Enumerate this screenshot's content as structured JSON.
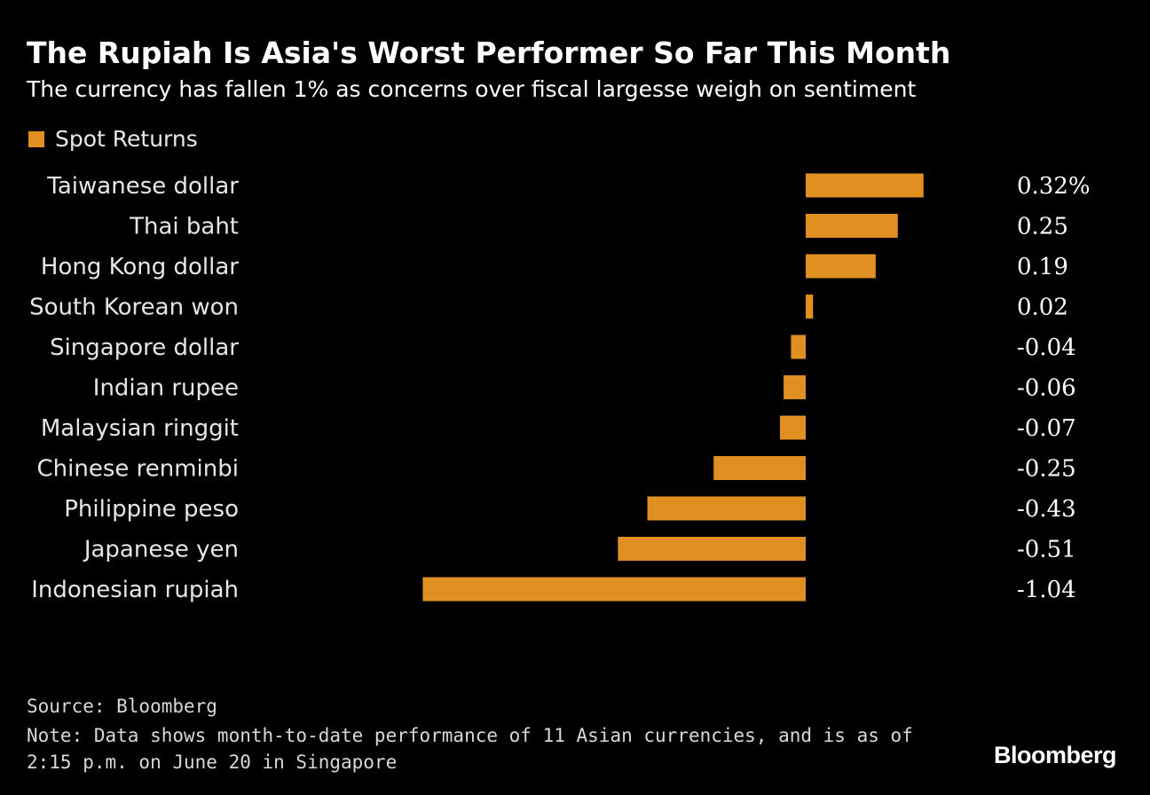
{
  "header": {
    "title": "The Rupiah Is Asia's Worst Performer So Far This Month",
    "subtitle": "The currency has fallen 1% as concerns over fiscal largesse weigh on sentiment"
  },
  "colors": {
    "bar": "#e08f22",
    "background": "#000000"
  },
  "chart_data": {
    "type": "bar",
    "orientation": "horizontal",
    "categories": [
      "Taiwanese dollar",
      "Thai baht",
      "Hong Kong dollar",
      "South Korean won",
      "Singapore dollar",
      "Indian rupee",
      "Malaysian ringgit",
      "Chinese renminbi",
      "Philippine peso",
      "Japanese yen",
      "Indonesian rupiah"
    ],
    "series": [
      {
        "name": "Spot Returns",
        "values": [
          0.32,
          0.25,
          0.19,
          0.02,
          -0.04,
          -0.06,
          -0.07,
          -0.25,
          -0.43,
          -0.51,
          -1.04
        ]
      }
    ],
    "value_labels": [
      "0.32%",
      "0.25",
      "0.19",
      "0.02",
      "-0.04",
      "-0.06",
      "-0.07",
      "-0.25",
      "-0.43",
      "-0.51",
      "-1.04"
    ],
    "legend_placement": "top-left",
    "grid": false
  },
  "footer": {
    "source": "Source: Bloomberg",
    "note": "Note: Data shows month-to-date performance of 11 Asian currencies, and is as of 2:15 p.m. on June 20 in Singapore",
    "brand": "Bloomberg"
  }
}
